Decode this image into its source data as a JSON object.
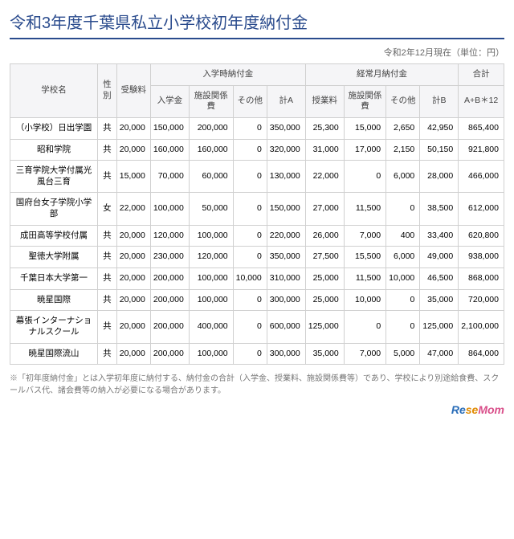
{
  "title": "令和3年度千葉県私立小学校初年度納付金",
  "top_note": "令和2年12月現在（単位：円）",
  "headers": {
    "school": "学校名",
    "gender": "性別",
    "exam_fee": "受験料",
    "group_a": "入学時納付金",
    "group_b": "経常月納付金",
    "total": "合計",
    "a_entrance": "入学金",
    "a_facility": "施設関係費",
    "a_other": "その他",
    "a_sub": "計A",
    "b_tuition": "授業料",
    "b_facility": "施設関係費",
    "b_other": "その他",
    "b_sub": "計B",
    "total_formula": "A+B＊12"
  },
  "rows": [
    {
      "name": "（小学校）日出学園",
      "gender": "共",
      "exam": "20,000",
      "a1": "150,000",
      "a2": "200,000",
      "a3": "0",
      "asub": "350,000",
      "b1": "25,300",
      "b2": "15,000",
      "b3": "2,650",
      "bsub": "42,950",
      "tot": "865,400"
    },
    {
      "name": "昭和学院",
      "gender": "共",
      "exam": "20,000",
      "a1": "160,000",
      "a2": "160,000",
      "a3": "0",
      "asub": "320,000",
      "b1": "31,000",
      "b2": "17,000",
      "b3": "2,150",
      "bsub": "50,150",
      "tot": "921,800"
    },
    {
      "name": "三育学院大学付属光風台三育",
      "gender": "共",
      "exam": "15,000",
      "a1": "70,000",
      "a2": "60,000",
      "a3": "0",
      "asub": "130,000",
      "b1": "22,000",
      "b2": "0",
      "b3": "6,000",
      "bsub": "28,000",
      "tot": "466,000"
    },
    {
      "name": "国府台女子学院小学部",
      "gender": "女",
      "exam": "22,000",
      "a1": "100,000",
      "a2": "50,000",
      "a3": "0",
      "asub": "150,000",
      "b1": "27,000",
      "b2": "11,500",
      "b3": "0",
      "bsub": "38,500",
      "tot": "612,000"
    },
    {
      "name": "成田高等学校付属",
      "gender": "共",
      "exam": "20,000",
      "a1": "120,000",
      "a2": "100,000",
      "a3": "0",
      "asub": "220,000",
      "b1": "26,000",
      "b2": "7,000",
      "b3": "400",
      "bsub": "33,400",
      "tot": "620,800"
    },
    {
      "name": "聖徳大学附属",
      "gender": "共",
      "exam": "20,000",
      "a1": "230,000",
      "a2": "120,000",
      "a3": "0",
      "asub": "350,000",
      "b1": "27,500",
      "b2": "15,500",
      "b3": "6,000",
      "bsub": "49,000",
      "tot": "938,000"
    },
    {
      "name": "千葉日本大学第一",
      "gender": "共",
      "exam": "20,000",
      "a1": "200,000",
      "a2": "100,000",
      "a3": "10,000",
      "asub": "310,000",
      "b1": "25,000",
      "b2": "11,500",
      "b3": "10,000",
      "bsub": "46,500",
      "tot": "868,000"
    },
    {
      "name": "暁星国際",
      "gender": "共",
      "exam": "20,000",
      "a1": "200,000",
      "a2": "100,000",
      "a3": "0",
      "asub": "300,000",
      "b1": "25,000",
      "b2": "10,000",
      "b3": "0",
      "bsub": "35,000",
      "tot": "720,000"
    },
    {
      "name": "幕張インターナショナルスクール",
      "gender": "共",
      "exam": "20,000",
      "a1": "200,000",
      "a2": "400,000",
      "a3": "0",
      "asub": "600,000",
      "b1": "125,000",
      "b2": "0",
      "b3": "0",
      "bsub": "125,000",
      "tot": "2,100,000"
    },
    {
      "name": "暁星国際流山",
      "gender": "共",
      "exam": "20,000",
      "a1": "200,000",
      "a2": "100,000",
      "a3": "0",
      "asub": "300,000",
      "b1": "35,000",
      "b2": "7,000",
      "b3": "5,000",
      "bsub": "47,000",
      "tot": "864,000"
    }
  ],
  "footnote": "※「初年度納付金」とは入学初年度に納付する、納付金の合計（入学金、授業料、施設関係費等）であり、学校により別途給食費、スクールバス代、諸会費等の納入が必要になる場合があります。",
  "logo": {
    "re": "Re",
    "se": "se",
    "mom": "Mom"
  },
  "colors": {
    "title": "#2a4b8d",
    "border": "#d0d0d0",
    "header_bg": "#f5f5f7",
    "footnote": "#777"
  }
}
